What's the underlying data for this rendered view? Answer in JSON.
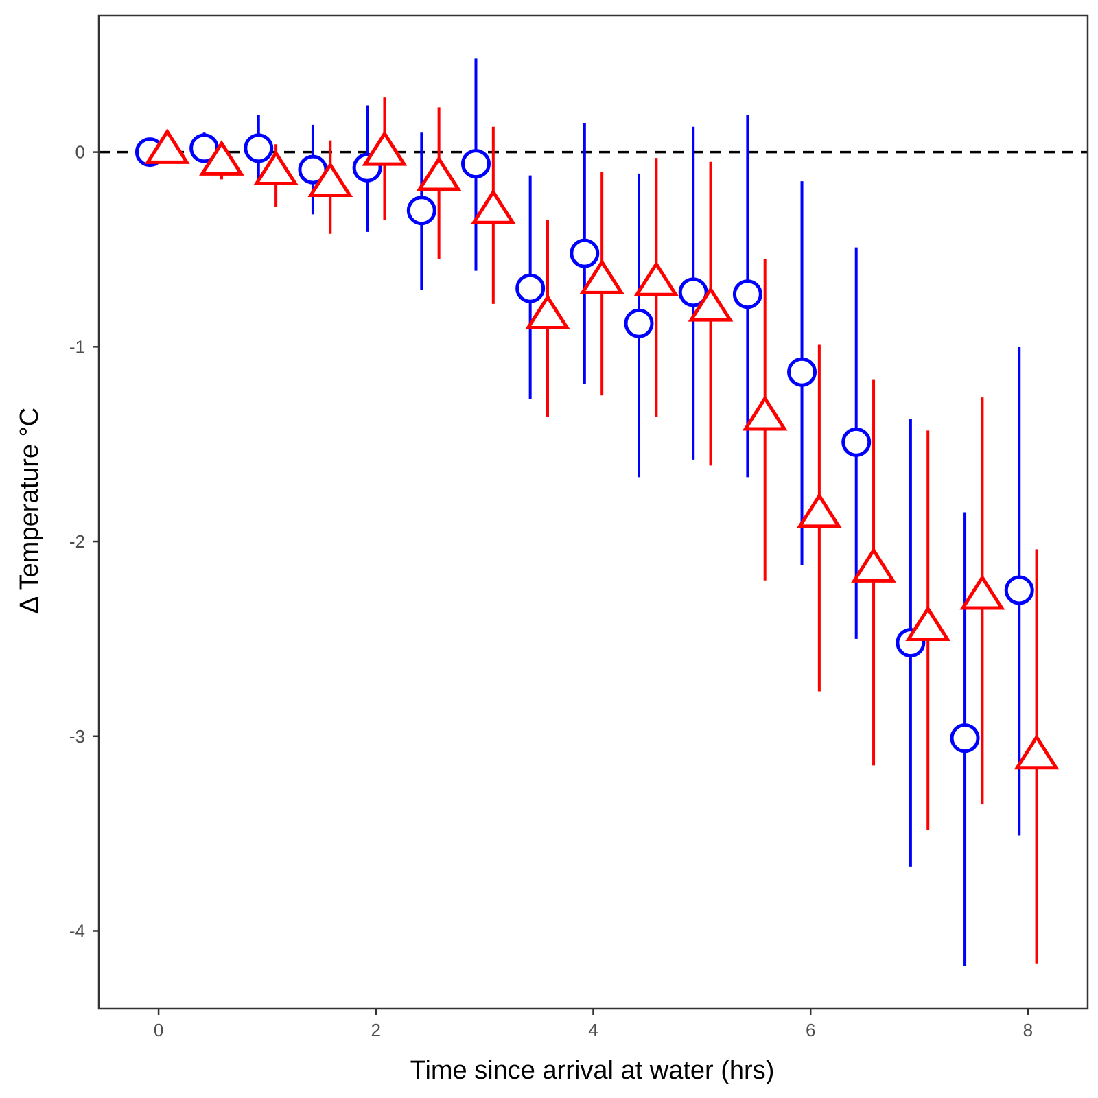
{
  "chart_data": {
    "type": "scatter",
    "xlabel": "Time since arrival at water (hrs)",
    "ylabel": "Δ Temperature °C",
    "xlim": [
      -0.55,
      8.55
    ],
    "ylim": [
      -4.4,
      0.7
    ],
    "xticks": [
      0,
      2,
      4,
      6,
      8
    ],
    "xtick_labels": [
      "0",
      "2",
      "4",
      "6",
      "8"
    ],
    "yticks": [
      0,
      -1,
      -2,
      -3,
      -4
    ],
    "ytick_labels": [
      "0",
      "-1",
      "-2",
      "-3",
      "-4"
    ],
    "grid": false,
    "reference_line": {
      "y": 0,
      "style": "dashed",
      "color": "#000000"
    },
    "series": [
      {
        "marker": "circle",
        "color": "#0000ff",
        "points": [
          {
            "x": -0.08,
            "y": 0.0,
            "lo": 0.0,
            "hi": 0.0
          },
          {
            "x": 0.42,
            "y": 0.02,
            "lo": -0.05,
            "hi": 0.1
          },
          {
            "x": 0.92,
            "y": 0.02,
            "lo": -0.15,
            "hi": 0.19
          },
          {
            "x": 1.42,
            "y": -0.09,
            "lo": -0.32,
            "hi": 0.14
          },
          {
            "x": 1.92,
            "y": -0.08,
            "lo": -0.41,
            "hi": 0.24
          },
          {
            "x": 2.42,
            "y": -0.3,
            "lo": -0.71,
            "hi": 0.1
          },
          {
            "x": 2.92,
            "y": -0.06,
            "lo": -0.61,
            "hi": 0.48
          },
          {
            "x": 3.42,
            "y": -0.7,
            "lo": -1.27,
            "hi": -0.12
          },
          {
            "x": 3.92,
            "y": -0.52,
            "lo": -1.19,
            "hi": 0.15
          },
          {
            "x": 4.42,
            "y": -0.88,
            "lo": -1.67,
            "hi": -0.11
          },
          {
            "x": 4.92,
            "y": -0.72,
            "lo": -1.58,
            "hi": 0.13
          },
          {
            "x": 5.42,
            "y": -0.73,
            "lo": -1.67,
            "hi": 0.19
          },
          {
            "x": 5.92,
            "y": -1.13,
            "lo": -2.12,
            "hi": -0.15
          },
          {
            "x": 6.42,
            "y": -1.49,
            "lo": -2.5,
            "hi": -0.49
          },
          {
            "x": 6.92,
            "y": -2.52,
            "lo": -3.67,
            "hi": -1.37
          },
          {
            "x": 7.42,
            "y": -3.01,
            "lo": -4.18,
            "hi": -1.85
          },
          {
            "x": 7.92,
            "y": -2.25,
            "lo": -3.51,
            "hi": -1.0
          }
        ]
      },
      {
        "marker": "triangle",
        "color": "#ff0000",
        "points": [
          {
            "x": 0.08,
            "y": 0.01,
            "lo": -0.02,
            "hi": 0.1
          },
          {
            "x": 0.58,
            "y": -0.05,
            "lo": -0.14,
            "hi": 0.03
          },
          {
            "x": 1.08,
            "y": -0.1,
            "lo": -0.28,
            "hi": 0.04
          },
          {
            "x": 1.58,
            "y": -0.16,
            "lo": -0.42,
            "hi": 0.06
          },
          {
            "x": 2.08,
            "y": 0.0,
            "lo": -0.35,
            "hi": 0.28
          },
          {
            "x": 2.58,
            "y": -0.13,
            "lo": -0.55,
            "hi": 0.23
          },
          {
            "x": 3.08,
            "y": -0.3,
            "lo": -0.78,
            "hi": 0.13
          },
          {
            "x": 3.58,
            "y": -0.84,
            "lo": -1.36,
            "hi": -0.35
          },
          {
            "x": 4.08,
            "y": -0.66,
            "lo": -1.25,
            "hi": -0.1
          },
          {
            "x": 4.58,
            "y": -0.67,
            "lo": -1.36,
            "hi": -0.03
          },
          {
            "x": 5.08,
            "y": -0.8,
            "lo": -1.61,
            "hi": -0.05
          },
          {
            "x": 5.58,
            "y": -1.36,
            "lo": -2.2,
            "hi": -0.55
          },
          {
            "x": 6.08,
            "y": -1.86,
            "lo": -2.77,
            "hi": -0.99
          },
          {
            "x": 6.58,
            "y": -2.14,
            "lo": -3.15,
            "hi": -1.17
          },
          {
            "x": 7.08,
            "y": -2.44,
            "lo": -3.48,
            "hi": -1.43
          },
          {
            "x": 7.58,
            "y": -2.28,
            "lo": -3.35,
            "hi": -1.26
          },
          {
            "x": 8.08,
            "y": -3.1,
            "lo": -4.17,
            "hi": -2.04
          }
        ]
      }
    ]
  }
}
